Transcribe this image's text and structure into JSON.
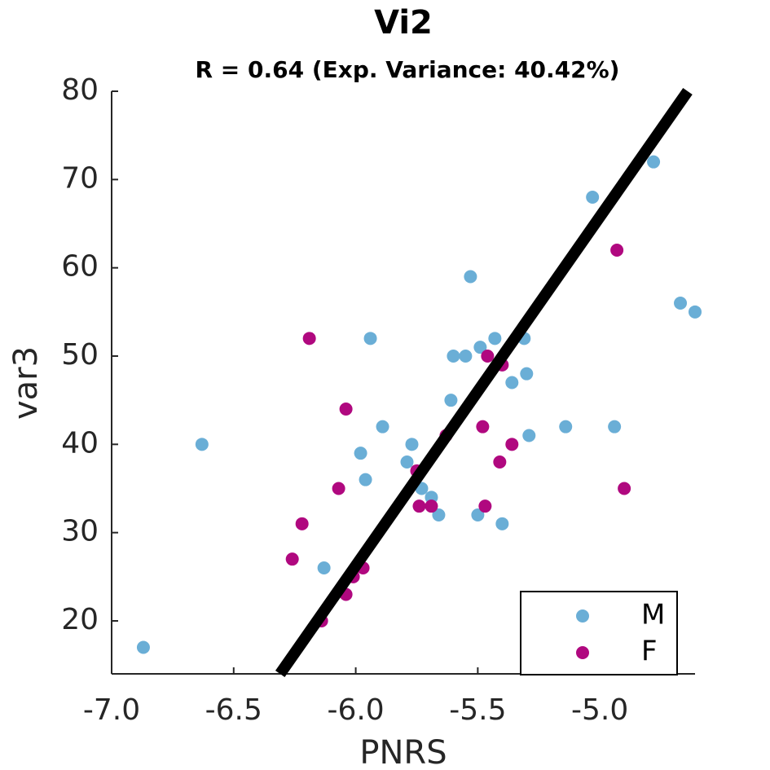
{
  "chart_data": {
    "type": "scatter",
    "title": "Vi2",
    "subtitle": "R = 0.64 (Exp. Variance: 40.42%)",
    "x_label": "PNRS",
    "y_label": "var3",
    "xlim": [
      -7.0,
      -4.61
    ],
    "ylim": [
      14,
      80
    ],
    "xticks": [
      {
        "value": -7.0,
        "label": "-7.0"
      },
      -6.5,
      {
        "value": -6.0,
        "label": "-6.0"
      },
      -5.5,
      {
        "value": -5.0,
        "label": "-5.0"
      }
    ],
    "yticks": [
      20,
      30,
      40,
      50,
      60,
      70,
      80
    ],
    "legend": "lower right",
    "series": [
      {
        "name": "M",
        "color": "#6aaed6",
        "x": [
          -6.87,
          -6.63,
          -6.13,
          -5.94,
          -5.98,
          -5.96,
          -5.89,
          -5.79,
          -5.77,
          -5.73,
          -5.69,
          -5.66,
          -5.61,
          -5.55,
          -5.6,
          -5.53,
          -5.5,
          -5.49,
          -5.43,
          -5.4,
          -5.36,
          -5.31,
          -5.3,
          -5.29,
          -5.14,
          -5.03,
          -4.94,
          -4.78,
          -4.67,
          -4.61
        ],
        "y": [
          17,
          40,
          26,
          52,
          39,
          36,
          42,
          38,
          40,
          35,
          34,
          32,
          45,
          50,
          50,
          59,
          32,
          51,
          52,
          31,
          47,
          52,
          48,
          41,
          42,
          68,
          42,
          72,
          56,
          55
        ]
      },
      {
        "name": "F",
        "color": "#b0087f",
        "x": [
          -6.19,
          -6.04,
          -6.07,
          -6.22,
          -6.26,
          -6.14,
          -6.04,
          -6.01,
          -5.97,
          -5.75,
          -5.74,
          -5.69,
          -5.63,
          -5.48,
          -5.47,
          -5.46,
          -5.4,
          -5.41,
          -5.36,
          -4.93,
          -4.9
        ],
        "y": [
          52,
          44,
          35,
          31,
          27,
          20,
          23,
          25,
          26,
          37,
          33,
          33,
          41,
          42,
          33,
          50,
          49,
          38,
          40,
          62,
          35
        ]
      }
    ],
    "fit_line": {
      "x": [
        -6.31,
        -4.64
      ],
      "y": [
        14,
        80
      ],
      "color": "#000000"
    }
  }
}
